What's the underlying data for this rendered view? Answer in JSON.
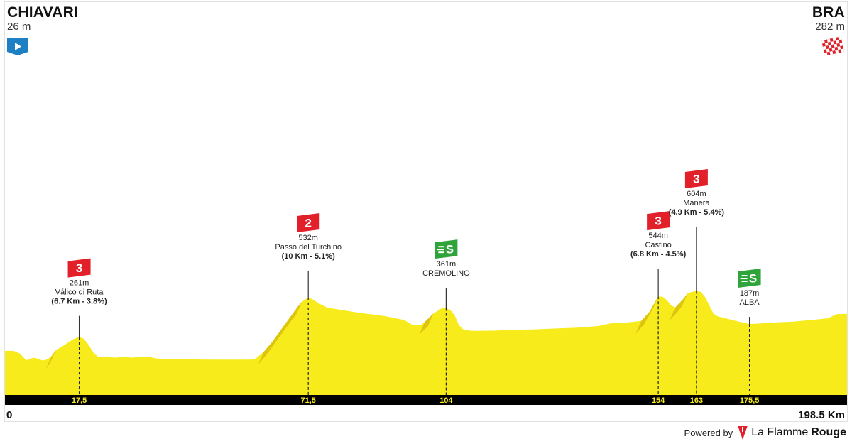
{
  "start": {
    "city": "CHIAVARI",
    "altitude": "26 m",
    "icon": "start-flag-icon"
  },
  "finish": {
    "city": "BRA",
    "altitude": "282 m",
    "icon": "checkered-flag-icon"
  },
  "distance": {
    "start_label": "0",
    "end_label": "198.5 Km"
  },
  "footer": {
    "powered_label": "Powered by",
    "brand_regular": "La Flamme",
    "brand_bold": "Rouge"
  },
  "colors": {
    "profile_fill": "#f7eb1b",
    "profile_shade": "#dcc40f",
    "axis_bar": "#000000",
    "axis_text": "#f7eb1b",
    "climb_badge": "#e2202a",
    "sprint_badge": "#2ea43b",
    "start_icon": "#1d80c4",
    "finish_icon": "#e2202a"
  },
  "chart_data": {
    "type": "area",
    "title": "",
    "xlabel": "",
    "ylabel": "",
    "xlim": [
      0,
      198.5
    ],
    "x_unit": "Km",
    "y_unit": "m",
    "profile": [
      [
        0,
        26
      ],
      [
        2,
        26
      ],
      [
        3.5,
        10
      ],
      [
        5,
        -30
      ],
      [
        6,
        -20
      ],
      [
        7,
        -15
      ],
      [
        8,
        -25
      ],
      [
        9,
        -32
      ],
      [
        10,
        -25
      ],
      [
        11,
        -5
      ],
      [
        12,
        30
      ],
      [
        14,
        60
      ],
      [
        16,
        95
      ],
      [
        17.5,
        110
      ],
      [
        18.5,
        100
      ],
      [
        19.5,
        70
      ],
      [
        21,
        10
      ],
      [
        22,
        -10
      ],
      [
        24,
        -10
      ],
      [
        26,
        -15
      ],
      [
        28,
        -10
      ],
      [
        30,
        -15
      ],
      [
        32,
        -10
      ],
      [
        34,
        -12
      ],
      [
        36,
        -20
      ],
      [
        38,
        -25
      ],
      [
        42,
        -23
      ],
      [
        46,
        -26
      ],
      [
        50,
        -27
      ],
      [
        54,
        -27
      ],
      [
        58,
        -27
      ],
      [
        59,
        -22
      ],
      [
        61,
        20
      ],
      [
        63,
        80
      ],
      [
        65,
        150
      ],
      [
        67,
        220
      ],
      [
        69,
        290
      ],
      [
        70,
        320
      ],
      [
        71.5,
        345
      ],
      [
        72.5,
        335
      ],
      [
        74,
        310
      ],
      [
        76,
        285
      ],
      [
        80,
        268
      ],
      [
        84,
        252
      ],
      [
        88,
        240
      ],
      [
        90,
        232
      ],
      [
        94,
        212
      ],
      [
        96,
        183
      ],
      [
        98,
        180
      ],
      [
        99,
        200
      ],
      [
        101,
        250
      ],
      [
        103,
        282
      ],
      [
        104,
        283
      ],
      [
        105,
        270
      ],
      [
        106,
        240
      ],
      [
        107,
        180
      ],
      [
        108,
        155
      ],
      [
        110,
        146
      ],
      [
        115,
        147
      ],
      [
        120,
        152
      ],
      [
        125,
        155
      ],
      [
        130,
        160
      ],
      [
        135,
        165
      ],
      [
        140,
        175
      ],
      [
        143,
        192
      ],
      [
        146,
        194
      ],
      [
        150,
        205
      ],
      [
        152,
        262
      ],
      [
        154,
        352
      ],
      [
        155,
        350
      ],
      [
        156,
        330
      ],
      [
        157,
        300
      ],
      [
        158,
        285
      ],
      [
        160,
        340
      ],
      [
        161,
        373
      ],
      [
        163,
        385
      ],
      [
        164,
        380
      ],
      [
        165,
        350
      ],
      [
        166,
        300
      ],
      [
        167,
        250
      ],
      [
        168,
        233
      ],
      [
        170,
        220
      ],
      [
        172,
        207
      ],
      [
        175.5,
        187
      ],
      [
        178,
        190
      ],
      [
        182,
        197
      ],
      [
        186,
        201
      ],
      [
        190,
        211
      ],
      [
        194,
        221
      ],
      [
        196,
        246
      ],
      [
        198.5,
        248
      ]
    ],
    "checkpoints": [
      {
        "km": 17.5,
        "km_label": "17,5",
        "type": "climb",
        "category": "3",
        "altitude": "261m",
        "name": "Válico di Ruta",
        "detail": "(6.7 Km - 3.8%)"
      },
      {
        "km": 71.5,
        "km_label": "71,5",
        "type": "climb",
        "category": "2",
        "altitude": "532m",
        "name": "Passo del Turchino",
        "detail": "(10 Km - 5.1%)"
      },
      {
        "km": 104,
        "km_label": "104",
        "type": "sprint",
        "category": "S",
        "altitude": "361m",
        "name": "CREMOLINO",
        "detail": ""
      },
      {
        "km": 154,
        "km_label": "154",
        "type": "climb",
        "category": "3",
        "altitude": "544m",
        "name": "Castino",
        "detail": "(6.8 Km - 4.5%)"
      },
      {
        "km": 163,
        "km_label": "163",
        "type": "climb",
        "category": "3",
        "altitude": "604m",
        "name": "Manera",
        "detail": "(4.9 Km - 5.4%)"
      },
      {
        "km": 175.5,
        "km_label": "175,5",
        "type": "sprint",
        "category": "S",
        "altitude": "187m",
        "name": "ALBA",
        "detail": ""
      }
    ]
  }
}
